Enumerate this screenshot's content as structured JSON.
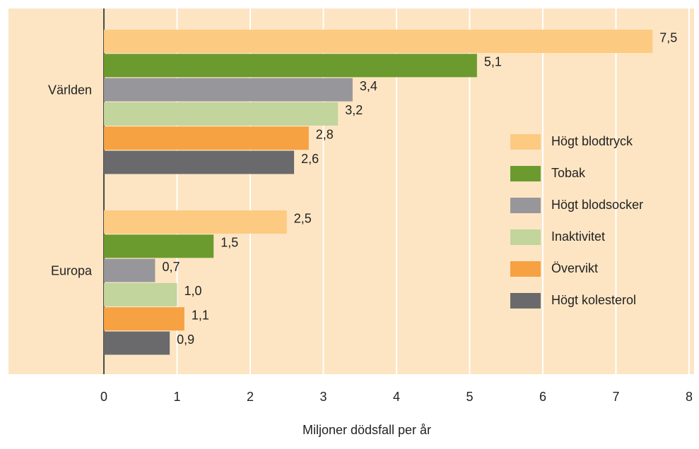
{
  "chart_data": {
    "type": "bar",
    "orientation": "horizontal",
    "x_label": "Miljoner dödsfall per år",
    "categories": [
      "Världen",
      "Europa"
    ],
    "series": [
      {
        "name": "Högt blodtryck",
        "color": "#fdca82",
        "values": [
          7.5,
          2.5
        ],
        "value_labels": [
          "7,5",
          "2,5"
        ]
      },
      {
        "name": "Tobak",
        "color": "#6b9b2f",
        "values": [
          5.1,
          1.5
        ],
        "value_labels": [
          "5,1",
          "1,5"
        ]
      },
      {
        "name": "Högt blodsocker",
        "color": "#97979b",
        "values": [
          3.4,
          0.7
        ],
        "value_labels": [
          "3,4",
          "0,7"
        ]
      },
      {
        "name": "Inaktivitet",
        "color": "#c1d59c",
        "values": [
          3.2,
          1.0
        ],
        "value_labels": [
          "3,2",
          "1,0"
        ]
      },
      {
        "name": "Övervikt",
        "color": "#f6a142",
        "values": [
          2.8,
          1.1
        ],
        "value_labels": [
          "2,8",
          "1,1"
        ]
      },
      {
        "name": "Högt kolesterol",
        "color": "#6a6a6d",
        "values": [
          2.6,
          0.9
        ],
        "value_labels": [
          "2,6",
          "0,9"
        ]
      }
    ],
    "xlim": [
      0,
      8
    ],
    "xticks": [
      0,
      1,
      2,
      3,
      4,
      5,
      6,
      7,
      8
    ],
    "grid": true,
    "legend": "right"
  }
}
